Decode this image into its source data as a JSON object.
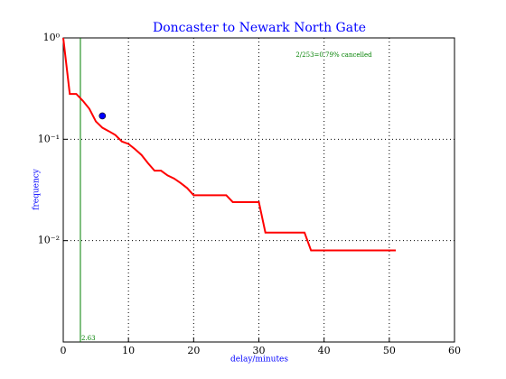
{
  "chart_data": {
    "type": "line",
    "title": "Doncaster to Newark North Gate",
    "xlabel": "delay/minutes",
    "ylabel": "frequency",
    "annotation": "2/253=0.79% cancelled",
    "xlim": [
      0,
      60
    ],
    "xticks": [
      0,
      10,
      20,
      30,
      40,
      50,
      60
    ],
    "ylim": [
      0.001,
      1
    ],
    "yticks": [
      {
        "value": 1,
        "label": "10⁰"
      },
      {
        "value": 0.1,
        "label": "10⁻¹"
      },
      {
        "value": 0.01,
        "label": "10⁻²"
      }
    ],
    "log_y": true,
    "grid": true,
    "series": [
      {
        "color": "#ff0000",
        "x": [
          0,
          1,
          2,
          3,
          4,
          5,
          6,
          7,
          8,
          9,
          10,
          11,
          12,
          13,
          14,
          15,
          16,
          17,
          18,
          19,
          20,
          25,
          26,
          30,
          31,
          37,
          38,
          51
        ],
        "values": [
          1.0,
          0.28,
          0.28,
          0.24,
          0.2,
          0.15,
          0.13,
          0.12,
          0.11,
          0.095,
          0.09,
          0.08,
          0.07,
          0.058,
          0.049,
          0.049,
          0.044,
          0.041,
          0.037,
          0.033,
          0.028,
          0.028,
          0.024,
          0.024,
          0.012,
          0.012,
          0.008,
          0.008
        ]
      }
    ],
    "point": {
      "x": 6,
      "y": 0.17,
      "color": "#0000ff"
    },
    "vline": 2.63,
    "vline_color": "#008000"
  }
}
